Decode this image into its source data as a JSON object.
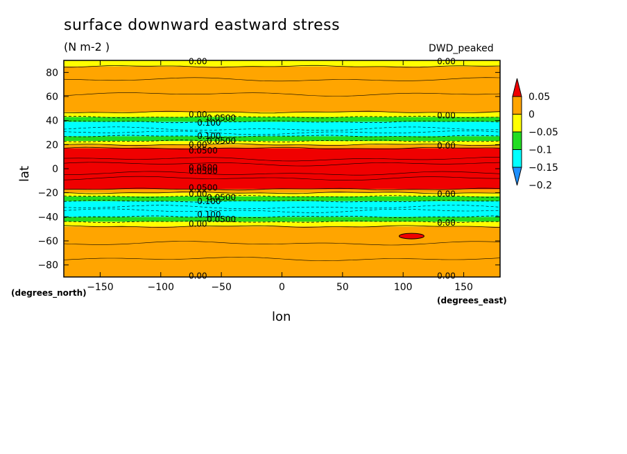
{
  "header": {
    "title": "surface downward eastward stress",
    "units": "(N m-2  )",
    "model": "DWD_peaked"
  },
  "axes": {
    "xlabel": "lon",
    "ylabel": "lat",
    "xlabel_units": "(degrees_east)",
    "ylabel_units": "(degrees_north)"
  },
  "colors": {
    "red": "#f00000",
    "orange": "#ffa500",
    "yellow": "#ffff00",
    "green": "#22dd22",
    "cyan": "#00ffff",
    "blue": "#1e90ff"
  },
  "chart_data": {
    "type": "heatmap",
    "title": "surface downward eastward stress",
    "xlabel": "lon",
    "ylabel": "lat",
    "xlim": [
      -180,
      180
    ],
    "ylim": [
      -90,
      90
    ],
    "xticks": [
      -150,
      -100,
      -50,
      0,
      50,
      100,
      150
    ],
    "yticks": [
      -80,
      -60,
      -40,
      -20,
      0,
      20,
      40,
      60,
      80
    ],
    "colorbar": {
      "levels": [
        "0.05",
        "0",
        "−0.05",
        "−0.1",
        "−0.15",
        "−0.2"
      ],
      "bins": [
        {
          "range": [
            0.05,
            null
          ],
          "color": "#f00000"
        },
        {
          "range": [
            0,
            0.05
          ],
          "color": "#ffa500"
        },
        {
          "range": [
            -0.05,
            0
          ],
          "color": "#ffff00"
        },
        {
          "range": [
            -0.1,
            -0.05
          ],
          "color": "#22dd22"
        },
        {
          "range": [
            -0.15,
            -0.1
          ],
          "color": "#00ffff"
        },
        {
          "range": [
            -0.2,
            -0.15
          ],
          "color": "#1e90ff"
        }
      ]
    },
    "zonal_bands": [
      {
        "lat": [
          -90,
          -48
        ],
        "level": "0 to 0.05"
      },
      {
        "lat": [
          -48,
          -44
        ],
        "level": "-0.05 to 0"
      },
      {
        "lat": [
          -44,
          -40
        ],
        "level": "-0.1 to -0.05"
      },
      {
        "lat": [
          -40,
          -27
        ],
        "level": "-0.15 to -0.1"
      },
      {
        "lat": [
          -27,
          -23
        ],
        "level": "-0.1 to -0.05"
      },
      {
        "lat": [
          -23,
          -20
        ],
        "level": "-0.05 to 0"
      },
      {
        "lat": [
          -20,
          -17
        ],
        "level": "0 to 0.05"
      },
      {
        "lat": [
          -17,
          17
        ],
        "level": "> 0.05"
      },
      {
        "lat": [
          17,
          20
        ],
        "level": "0 to 0.05"
      },
      {
        "lat": [
          20,
          23
        ],
        "level": "-0.05 to 0"
      },
      {
        "lat": [
          23,
          27
        ],
        "level": "-0.1 to -0.05"
      },
      {
        "lat": [
          27,
          39
        ],
        "level": "-0.15 to -0.1"
      },
      {
        "lat": [
          39,
          43
        ],
        "level": "-0.1 to -0.05"
      },
      {
        "lat": [
          43,
          47
        ],
        "level": "-0.05 to 0"
      },
      {
        "lat": [
          47,
          85
        ],
        "level": "0 to 0.05"
      },
      {
        "lat": [
          85,
          90
        ],
        "level": "-0.05 to 0"
      }
    ],
    "contour_labels": [
      {
        "text": "0.00",
        "lon": -77,
        "lat": 89
      },
      {
        "text": "0.00",
        "lon": 128,
        "lat": 89
      },
      {
        "text": "0.00",
        "lon": -77,
        "lat": 45
      },
      {
        "text": "0.0500",
        "lon": -62,
        "lat": 42
      },
      {
        "text": "0.100",
        "lon": -70,
        "lat": 38
      },
      {
        "text": "0.00",
        "lon": 128,
        "lat": 44
      },
      {
        "text": "0.100",
        "lon": -70,
        "lat": 27
      },
      {
        "text": "0.0500",
        "lon": -62,
        "lat": 23
      },
      {
        "text": "0.00",
        "lon": -77,
        "lat": 20
      },
      {
        "text": "0.00",
        "lon": 128,
        "lat": 19
      },
      {
        "text": "0.0500",
        "lon": -77,
        "lat": 15
      },
      {
        "text": "0.0500",
        "lon": -77,
        "lat": 1
      },
      {
        "text": "0.0500",
        "lon": -77,
        "lat": -2
      },
      {
        "text": "0.0500",
        "lon": -77,
        "lat": -16
      },
      {
        "text": "0.00",
        "lon": -77,
        "lat": -21
      },
      {
        "text": "0.00",
        "lon": 128,
        "lat": -21
      },
      {
        "text": "0.0500",
        "lon": -62,
        "lat": -24
      },
      {
        "text": "0.100",
        "lon": -70,
        "lat": -27
      },
      {
        "text": "0.100",
        "lon": -70,
        "lat": -38
      },
      {
        "text": "0.0500",
        "lon": -62,
        "lat": -42
      },
      {
        "text": "0.00",
        "lon": -77,
        "lat": -46
      },
      {
        "text": "0.00",
        "lon": 128,
        "lat": -45
      },
      {
        "text": "0.00",
        "lon": -77,
        "lat": -89
      },
      {
        "text": "0.00",
        "lon": 128,
        "lat": -89
      }
    ]
  }
}
